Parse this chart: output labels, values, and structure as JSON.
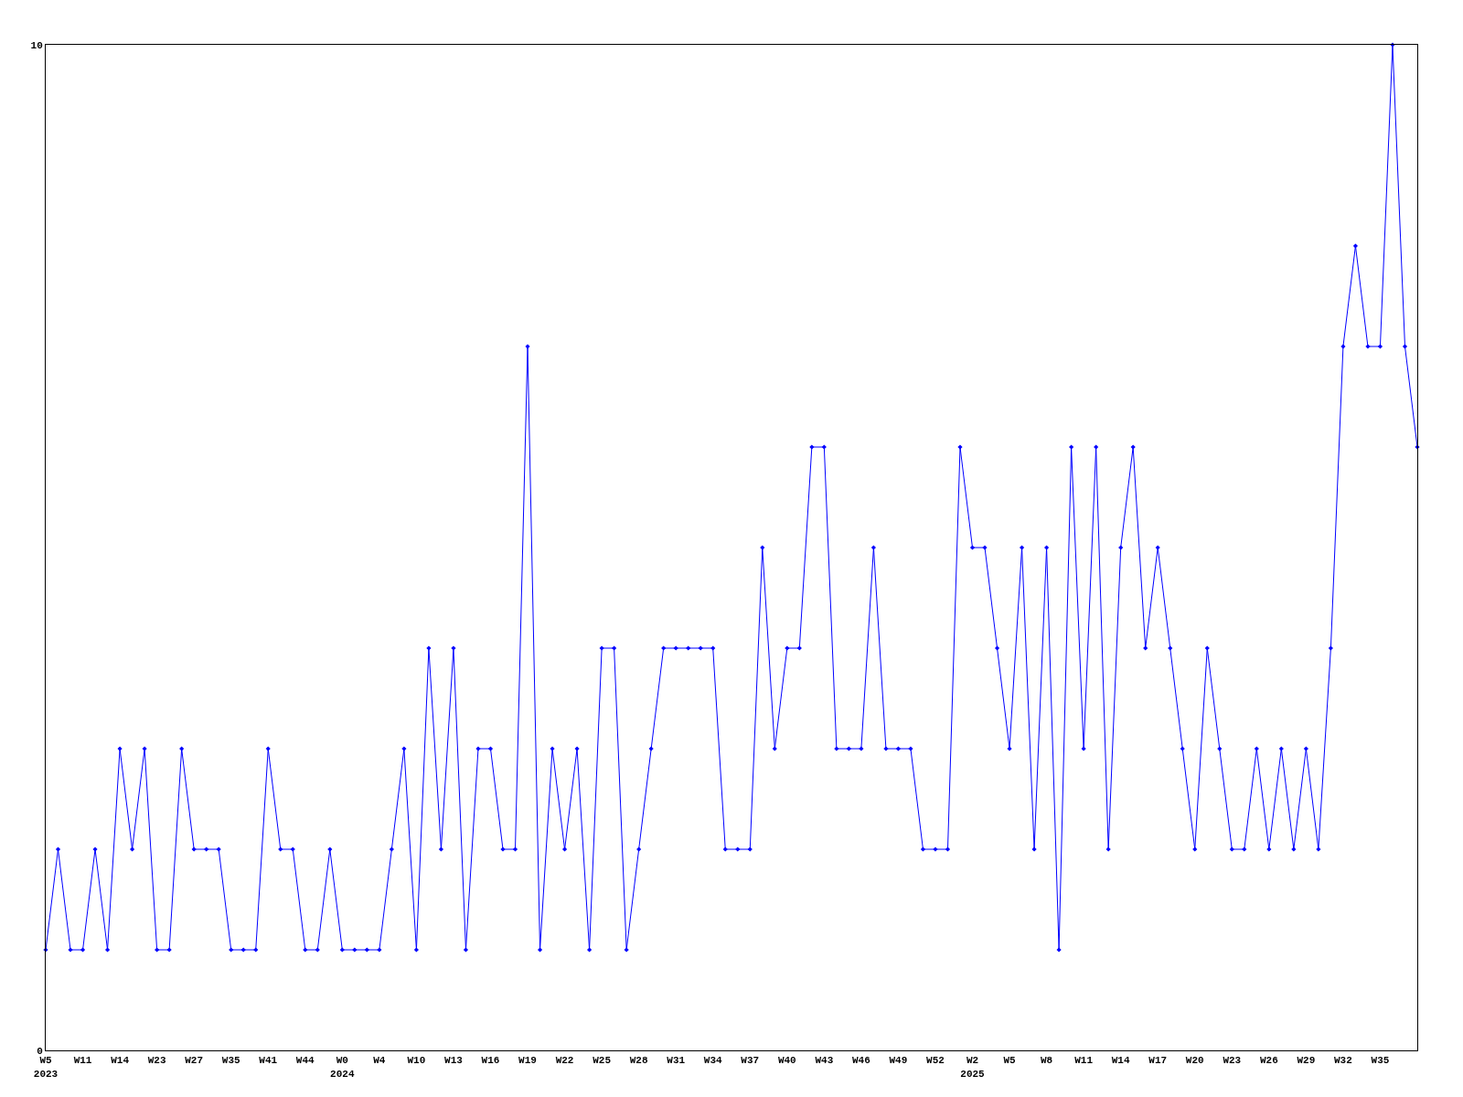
{
  "chart_data": {
    "type": "line",
    "categories": [
      "W5\n2023",
      null,
      null,
      "W11",
      null,
      null,
      "W14",
      null,
      null,
      "W23",
      null,
      null,
      "W27",
      null,
      null,
      "W35",
      null,
      null,
      "W41",
      null,
      null,
      "W44",
      null,
      null,
      "W0\n2024",
      null,
      null,
      "W4",
      null,
      null,
      "W10",
      null,
      null,
      "W13",
      null,
      null,
      "W16",
      null,
      null,
      "W19",
      null,
      null,
      "W22",
      null,
      null,
      "W25",
      null,
      null,
      "W28",
      null,
      null,
      "W31",
      null,
      null,
      "W34",
      null,
      null,
      "W37",
      null,
      null,
      "W40",
      null,
      null,
      "W43",
      null,
      null,
      "W46",
      null,
      null,
      "W49",
      null,
      null,
      "W52",
      null,
      null,
      "W2\n2025",
      null,
      null,
      "W5",
      null,
      null,
      "W8",
      null,
      null,
      "W11",
      null,
      null,
      "W14",
      null,
      null,
      "W17",
      null,
      null,
      "W20",
      null,
      null,
      "W23",
      null,
      null,
      "W26",
      null,
      null,
      "W29",
      null,
      null,
      "W32",
      null,
      null,
      "W35",
      null,
      null,
      null
    ],
    "series": [
      {
        "color": "#0000ff",
        "values": [
          1,
          2,
          1,
          1,
          2,
          1,
          3,
          2,
          3,
          1,
          1,
          3,
          2,
          2,
          2,
          1,
          1,
          1,
          3,
          2,
          2,
          1,
          1,
          2,
          1,
          1,
          1,
          1,
          2,
          3,
          1,
          4,
          2,
          4,
          1,
          3,
          3,
          2,
          2,
          7,
          1,
          3,
          2,
          3,
          1,
          4,
          4,
          1,
          2,
          3,
          4,
          4,
          4,
          4,
          4,
          2,
          2,
          2,
          5,
          3,
          4,
          4,
          6,
          6,
          3,
          3,
          3,
          5,
          3,
          3,
          3,
          2,
          2,
          2,
          6,
          5,
          5,
          4,
          3,
          5,
          2,
          5,
          1,
          6,
          3,
          6,
          2,
          5,
          6,
          4,
          5,
          4,
          3,
          2,
          4,
          3,
          2,
          2,
          3,
          2,
          3,
          2,
          3,
          2,
          4,
          7,
          8,
          7,
          7,
          10,
          7,
          6
        ]
      }
    ],
    "ylim": [
      0,
      10
    ],
    "yticks": [
      0,
      10
    ],
    "marker": "diamond",
    "line_style": "solid"
  }
}
